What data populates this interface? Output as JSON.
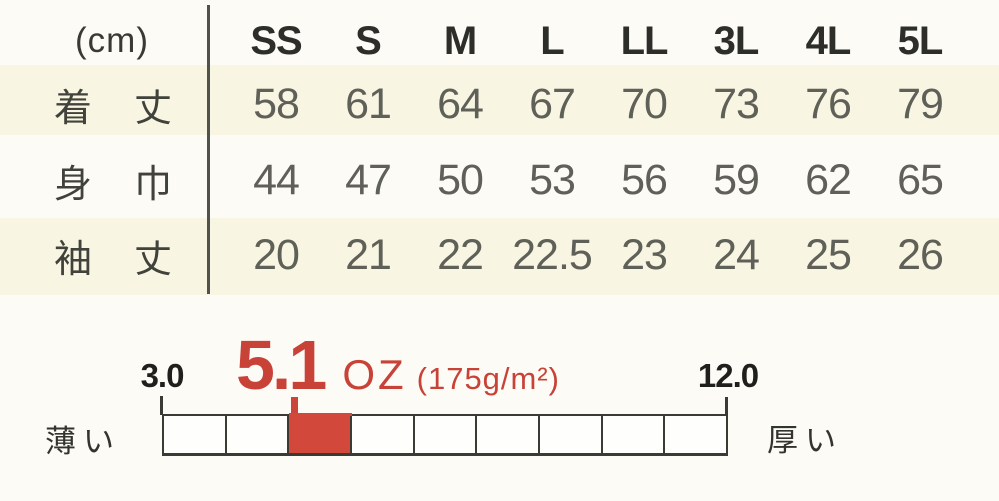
{
  "table": {
    "unit_label": "(cm)",
    "size_headers": [
      "SS",
      "S",
      "M",
      "L",
      "LL",
      "3L",
      "4L",
      "5L"
    ],
    "rows": [
      {
        "name": "body-length",
        "label": [
          "着",
          "丈"
        ],
        "values": [
          "58",
          "61",
          "64",
          "67",
          "70",
          "73",
          "76",
          "79"
        ]
      },
      {
        "name": "body-width",
        "label": [
          "身",
          "巾"
        ],
        "values": [
          "44",
          "47",
          "50",
          "53",
          "56",
          "59",
          "62",
          "65"
        ]
      },
      {
        "name": "sleeve-length",
        "label": [
          "袖",
          "丈"
        ],
        "values": [
          "20",
          "21",
          "22",
          "22.5",
          "23",
          "24",
          "25",
          "26"
        ]
      }
    ]
  },
  "scale": {
    "value_label": "5.1",
    "unit_label": "OZ",
    "metric_label": "(175g/m²)",
    "min_label": "3.0",
    "max_label": "12.0",
    "left_label": "薄い",
    "right_label": "厚い",
    "segments": 9,
    "highlighted_segment_index": 2,
    "colors": {
      "accent_red": "#c84237",
      "bar_red": "#d2483b",
      "line_dark": "#3b3b36",
      "stripe_cream": "#f8f6e2"
    }
  },
  "chart_data": [
    {
      "type": "table",
      "title": "(cm)",
      "columns": [
        "SS",
        "S",
        "M",
        "L",
        "LL",
        "3L",
        "4L",
        "5L"
      ],
      "rows": [
        {
          "label": "着丈",
          "values": [
            58,
            61,
            64,
            67,
            70,
            73,
            76,
            79
          ]
        },
        {
          "label": "身巾",
          "values": [
            44,
            47,
            50,
            53,
            56,
            59,
            62,
            65
          ]
        },
        {
          "label": "袖丈",
          "values": [
            20,
            21,
            22,
            22.5,
            23,
            24,
            25,
            26
          ]
        }
      ]
    },
    {
      "type": "scale",
      "title": "5.1 OZ (175g/m²)",
      "min": 3.0,
      "max": 12.0,
      "value": 5.1,
      "segments": 9,
      "highlighted_range": [
        5.0,
        6.0
      ],
      "left_annotation": "薄い",
      "right_annotation": "厚い"
    }
  ]
}
